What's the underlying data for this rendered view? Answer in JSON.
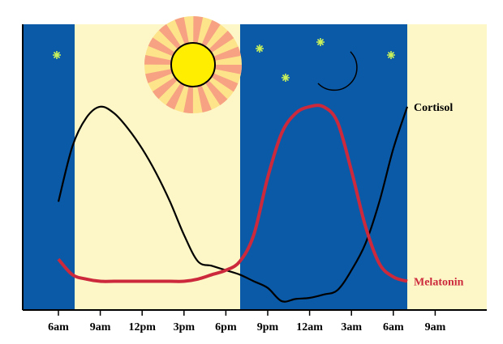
{
  "chart_data": {
    "type": "line",
    "categories": [
      "6am",
      null,
      null,
      "9am",
      null,
      null,
      "12pm",
      null,
      null,
      "3pm",
      null,
      null,
      "6pm",
      null,
      null,
      "9pm",
      null,
      null,
      "12am",
      null,
      null,
      "3am",
      null,
      null,
      "6am",
      null,
      null,
      "9am"
    ],
    "series": [
      {
        "name": "Cortisol",
        "color": "#000000",
        "values": [
          49,
          74,
          87,
          92,
          89,
          82,
          73,
          62,
          49,
          34,
          22,
          20,
          18,
          16,
          13,
          10,
          4,
          5,
          5.5,
          7,
          9,
          18,
          30,
          49,
          73,
          92,
          null,
          null
        ]
      },
      {
        "name": "Melatonin",
        "color": "#cc2a3c",
        "values": [
          23,
          16,
          14,
          13,
          13,
          13,
          13,
          13,
          13,
          13,
          14,
          16,
          18,
          22,
          34,
          60,
          80,
          89,
          92,
          92,
          85,
          63,
          38,
          21,
          15,
          13,
          null,
          null
        ]
      }
    ],
    "ylim": [
      0,
      100
    ]
  }
}
